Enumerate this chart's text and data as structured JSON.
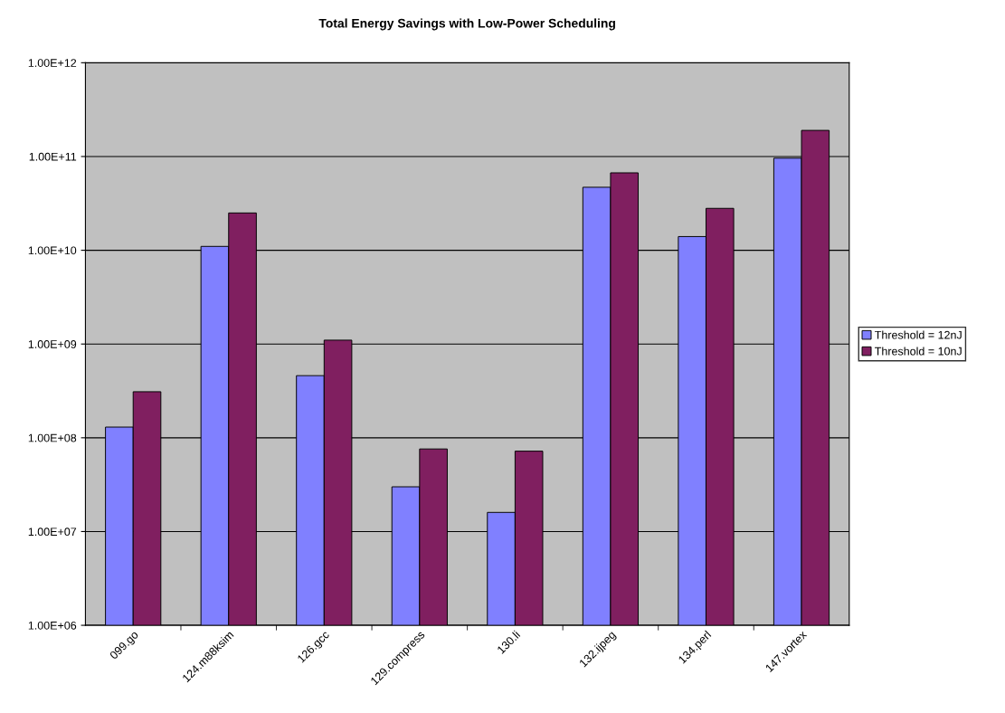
{
  "chart_data": {
    "type": "bar",
    "title": "Total Energy Savings with Low-Power Scheduling",
    "categories": [
      "099.go",
      "124.m88ksim",
      "126.gcc",
      "129.compress",
      "130.li",
      "132.ijpeg",
      "134.perl",
      "147.vortex"
    ],
    "series": [
      {
        "name": "Threshold = 12nJ",
        "color": "#8080ff",
        "values": [
          130000000.0,
          11000000000.0,
          460000000.0,
          30000000.0,
          16000000.0,
          47000000000.0,
          14000000000.0,
          96000000000.0
        ]
      },
      {
        "name": "Threshold = 10nJ",
        "color": "#801f60",
        "values": [
          310000000.0,
          25000000000.0,
          1100000000.0,
          76000000.0,
          72000000.0,
          67000000000.0,
          28000000000.0,
          190000000000.0
        ]
      }
    ],
    "log": true,
    "ylim": [
      1000000.0,
      1000000000000.0
    ],
    "yticks": [
      {
        "value": 1000000.0,
        "label": "1.00E+06"
      },
      {
        "value": 10000000.0,
        "label": "1.00E+07"
      },
      {
        "value": 100000000.0,
        "label": "1.00E+08"
      },
      {
        "value": 1000000000.0,
        "label": "1.00E+09"
      },
      {
        "value": 10000000000.0,
        "label": "1.00E+10"
      },
      {
        "value": 100000000000.0,
        "label": "1.00E+11"
      },
      {
        "value": 1000000000000.0,
        "label": "1.00E+12"
      }
    ],
    "grid": "y",
    "legend": "right"
  }
}
